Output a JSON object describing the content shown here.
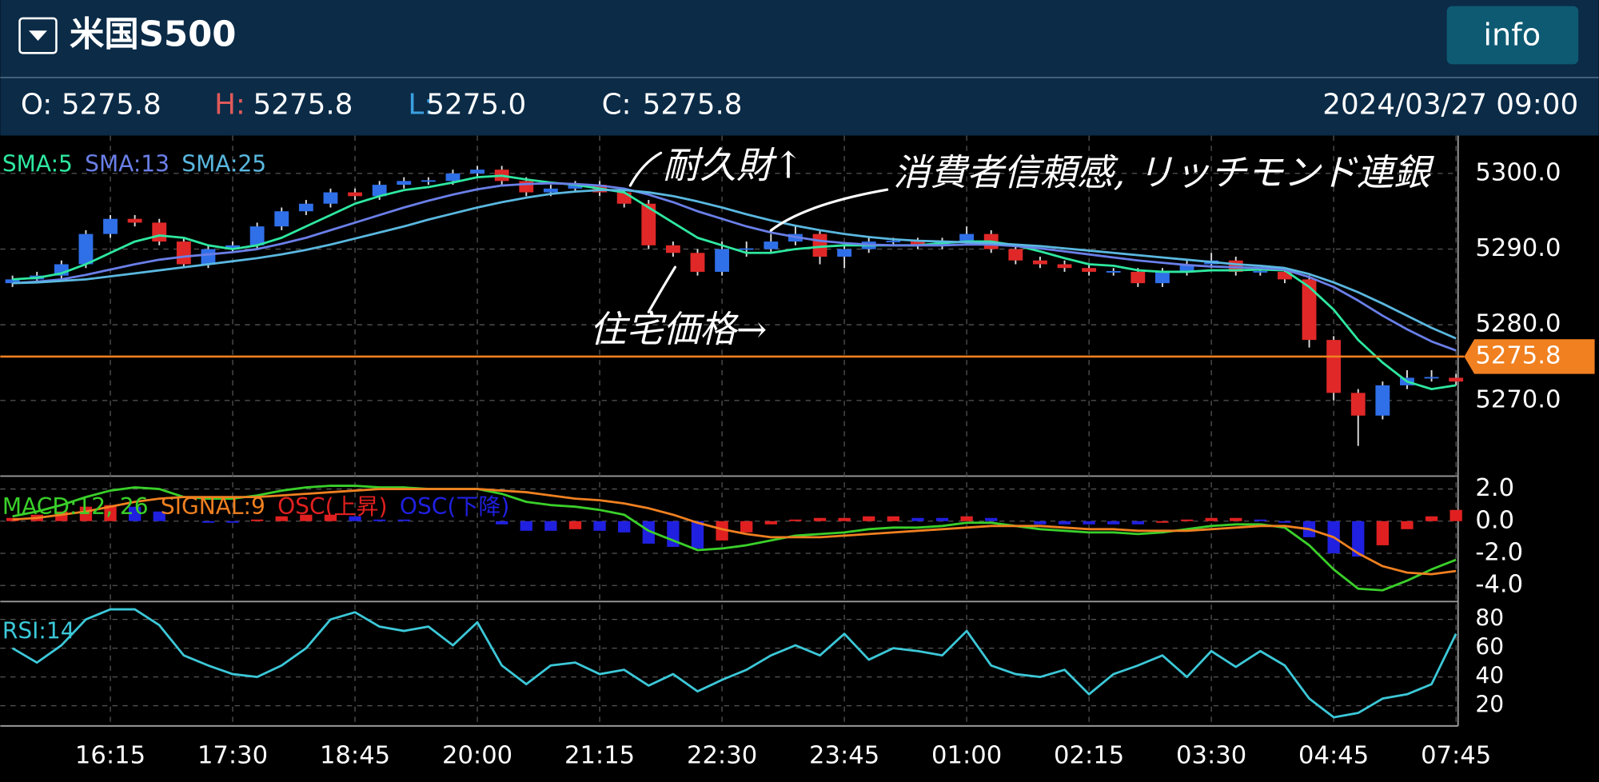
{
  "header": {
    "title": "米国S500",
    "button": "info",
    "ohlc": [
      {
        "label": "O:",
        "value": "5275.8"
      },
      {
        "label": "H:",
        "value": "5275.8"
      },
      {
        "label": "L:",
        "value": "5275.0"
      },
      {
        "label": "C:",
        "value": "5275.8"
      }
    ],
    "datetime": "2024/03/27 09:00"
  },
  "chart_data": [
    {
      "type": "candlestick",
      "ylim": [
        5260,
        5305
      ],
      "yticks": [
        {
          "value": 5270,
          "label": "5270.0"
        },
        {
          "value": 5280,
          "label": "5280.0"
        },
        {
          "value": 5290,
          "label": "5290.0"
        },
        {
          "value": 5300,
          "label": "5300.0"
        }
      ],
      "grid": true,
      "up_color": "#2f6fe8",
      "down_color": "#e02828",
      "last_price": 5275.8,
      "last_price_color": "#f08020",
      "open": [
        5285.5,
        5286,
        5286.5,
        5288,
        5292,
        5294,
        5293.5,
        5291,
        5288,
        5290,
        5290.5,
        5293,
        5295,
        5296,
        5297.5,
        5297,
        5298.5,
        5299,
        5299,
        5300,
        5300.5,
        5299,
        5297.5,
        5298,
        5298.5,
        5297.5,
        5296,
        5290.5,
        5289.5,
        5287,
        5290,
        5290,
        5291,
        5292,
        5289,
        5290,
        5291,
        5291,
        5290.5,
        5291,
        5292,
        5290,
        5288.5,
        5288,
        5287.5,
        5287,
        5287,
        5285.5,
        5287,
        5288,
        5288.5,
        5287,
        5287,
        5286,
        5278,
        5271,
        5268,
        5272,
        5273,
        5273
      ],
      "high": [
        5286.5,
        5287,
        5288.5,
        5292.5,
        5294.5,
        5294.5,
        5294,
        5291.5,
        5290.5,
        5291,
        5293.5,
        5295.5,
        5296.5,
        5298,
        5298,
        5299,
        5299.5,
        5299.5,
        5300.5,
        5301,
        5301,
        5299.5,
        5298.5,
        5299,
        5299,
        5298,
        5296.5,
        5291,
        5290,
        5291,
        5291,
        5292,
        5293,
        5292.5,
        5290.5,
        5291.5,
        5291.5,
        5291.5,
        5291.5,
        5293,
        5292.5,
        5290.5,
        5289,
        5288.5,
        5288,
        5287.5,
        5287.5,
        5287.5,
        5288.5,
        5289.5,
        5289,
        5287.5,
        5287.5,
        5286.5,
        5278.5,
        5271.5,
        5272.5,
        5274,
        5274,
        5273.5
      ],
      "low": [
        5285,
        5285.5,
        5286,
        5287.5,
        5291.5,
        5293,
        5290.5,
        5287.5,
        5287.5,
        5289.5,
        5290,
        5292.5,
        5294.5,
        5295.5,
        5296.5,
        5296.5,
        5298,
        5298.5,
        5298.5,
        5299.5,
        5298.5,
        5297,
        5297,
        5297.5,
        5297,
        5295.5,
        5290,
        5289,
        5286.5,
        5286.5,
        5289,
        5289.5,
        5290.5,
        5288,
        5287.5,
        5289.5,
        5290.5,
        5290,
        5290,
        5290.5,
        5289.5,
        5288,
        5287.5,
        5287,
        5286.5,
        5286.5,
        5285,
        5285,
        5286.5,
        5287.5,
        5286.5,
        5286.5,
        5285.5,
        5277,
        5270,
        5264,
        5267.5,
        5271.5,
        5272.5,
        5272
      ],
      "close": [
        5286,
        5286.5,
        5288,
        5292,
        5294,
        5293.5,
        5291,
        5288,
        5290,
        5290.5,
        5293,
        5295,
        5296,
        5297.5,
        5297,
        5298.5,
        5299,
        5299,
        5300,
        5300.5,
        5299,
        5297.5,
        5298,
        5298.5,
        5297.5,
        5296,
        5290.5,
        5289.5,
        5287,
        5290,
        5290,
        5291,
        5292,
        5289,
        5290,
        5291,
        5291,
        5290.5,
        5291,
        5292,
        5290,
        5288.5,
        5288,
        5287.5,
        5287,
        5287,
        5285.5,
        5287,
        5288,
        5288.5,
        5287,
        5287,
        5286,
        5278,
        5271,
        5268,
        5272,
        5273,
        5273,
        5272.5
      ],
      "series": [
        {
          "name": "SMA:5",
          "color": "#2ee8a0",
          "type": "line",
          "values": [
            5286,
            5286.2,
            5286.8,
            5288,
            5289.5,
            5291,
            5291.8,
            5291.5,
            5290.5,
            5290,
            5290.5,
            5291.5,
            5293,
            5294.5,
            5296,
            5297,
            5297.8,
            5298.2,
            5298.8,
            5299.5,
            5299.7,
            5299.2,
            5298.8,
            5298.5,
            5298,
            5297.5,
            5295.5,
            5293.5,
            5291.5,
            5290.5,
            5289.5,
            5289.5,
            5290,
            5290.3,
            5290.5,
            5290.5,
            5290.5,
            5290.5,
            5290.8,
            5291,
            5291,
            5290.5,
            5289.7,
            5288.8,
            5288,
            5287.8,
            5287.2,
            5287,
            5287,
            5287.2,
            5287.2,
            5287.3,
            5287.2,
            5285,
            5282,
            5278,
            5275,
            5272.5,
            5271.5,
            5272
          ]
        },
        {
          "name": "SMA:13",
          "color": "#6a7fe8",
          "type": "line",
          "values": [
            5285.5,
            5285.7,
            5286,
            5286.6,
            5287.3,
            5288,
            5288.6,
            5289,
            5289.3,
            5289.6,
            5290,
            5290.7,
            5291.5,
            5292.5,
            5293.5,
            5294.5,
            5295.5,
            5296.4,
            5297.2,
            5297.9,
            5298.4,
            5298.6,
            5298.7,
            5298.6,
            5298.4,
            5298,
            5297.2,
            5296.2,
            5295,
            5294,
            5293,
            5292.2,
            5291.6,
            5291.1,
            5290.8,
            5290.6,
            5290.5,
            5290.5,
            5290.5,
            5290.6,
            5290.6,
            5290.4,
            5290.1,
            5289.7,
            5289.3,
            5288.9,
            5288.5,
            5288.2,
            5287.9,
            5287.7,
            5287.6,
            5287.5,
            5287.3,
            5286.3,
            5285,
            5283.2,
            5281.2,
            5279.4,
            5277.8,
            5276.6
          ]
        },
        {
          "name": "SMA:25",
          "color": "#5ab8e0",
          "type": "line",
          "values": [
            5285.5,
            5285.6,
            5285.8,
            5286,
            5286.4,
            5286.8,
            5287.2,
            5287.6,
            5288,
            5288.4,
            5288.8,
            5289.3,
            5289.9,
            5290.6,
            5291.4,
            5292.2,
            5293,
            5293.9,
            5294.7,
            5295.5,
            5296.2,
            5296.8,
            5297.3,
            5297.6,
            5297.8,
            5297.8,
            5297.5,
            5297,
            5296.3,
            5295.5,
            5294.6,
            5293.8,
            5293.1,
            5292.5,
            5292,
            5291.6,
            5291.3,
            5291.1,
            5291,
            5290.9,
            5290.8,
            5290.6,
            5290.4,
            5290.1,
            5289.8,
            5289.5,
            5289.2,
            5288.9,
            5288.6,
            5288.3,
            5288,
            5287.8,
            5287.5,
            5286.7,
            5285.6,
            5284.3,
            5282.8,
            5281.2,
            5279.6,
            5278.2
          ]
        }
      ],
      "annotations": [
        "耐久財↑",
        "消費者信頼感, リッチモンド連銀",
        "住宅価格→"
      ]
    },
    {
      "type": "combo",
      "ylim": [
        -5,
        2.8
      ],
      "yticks": [
        {
          "value": -4,
          "label": "-4.0"
        },
        {
          "value": -2,
          "label": "-2.0"
        },
        {
          "value": 0,
          "label": "0.0"
        },
        {
          "value": 2,
          "label": "2.0"
        }
      ],
      "grid": true,
      "series": [
        {
          "name": "MACD:12, 26",
          "color": "#3ad02a",
          "type": "line",
          "values": [
            0.3,
            0.6,
            1.0,
            1.5,
            1.9,
            2.1,
            2.0,
            1.5,
            1.4,
            1.4,
            1.6,
            1.9,
            2.1,
            2.2,
            2.2,
            2.1,
            2.1,
            2.0,
            2.0,
            2.0,
            1.7,
            1.2,
            1.0,
            0.9,
            0.7,
            0.4,
            -0.6,
            -1.2,
            -1.8,
            -1.7,
            -1.5,
            -1.2,
            -0.9,
            -0.8,
            -0.7,
            -0.5,
            -0.4,
            -0.4,
            -0.3,
            -0.1,
            -0.1,
            -0.3,
            -0.5,
            -0.6,
            -0.7,
            -0.7,
            -0.8,
            -0.7,
            -0.5,
            -0.3,
            -0.2,
            -0.2,
            -0.4,
            -1.5,
            -3.0,
            -4.2,
            -4.3,
            -3.7,
            -3.0,
            -2.4
          ]
        },
        {
          "name": "SIGNAL:9",
          "color": "#f08020",
          "type": "line",
          "values": [
            0.1,
            0.2,
            0.4,
            0.6,
            0.9,
            1.2,
            1.4,
            1.5,
            1.5,
            1.5,
            1.5,
            1.6,
            1.7,
            1.8,
            1.9,
            2.0,
            2.0,
            2.0,
            2.0,
            2.0,
            1.9,
            1.8,
            1.6,
            1.4,
            1.3,
            1.1,
            0.8,
            0.4,
            -0.1,
            -0.5,
            -0.8,
            -1.0,
            -1.0,
            -1.0,
            -0.9,
            -0.8,
            -0.7,
            -0.6,
            -0.5,
            -0.4,
            -0.3,
            -0.3,
            -0.3,
            -0.4,
            -0.5,
            -0.5,
            -0.6,
            -0.6,
            -0.6,
            -0.5,
            -0.4,
            -0.3,
            -0.3,
            -0.5,
            -1.0,
            -2.0,
            -2.8,
            -3.2,
            -3.3,
            -3.1
          ]
        },
        {
          "name": "OSC(上昇)",
          "color": "#e02020",
          "type": "bar",
          "values": [
            0.2,
            0.4,
            0.6,
            0.9,
            1.0,
            null,
            null,
            null,
            null,
            null,
            0.1,
            0.3,
            0.4,
            0.4,
            null,
            null,
            null,
            null,
            null,
            null,
            null,
            null,
            null,
            -0.5,
            null,
            null,
            null,
            null,
            null,
            -1.2,
            -0.7,
            -0.2,
            0.1,
            0.2,
            0.2,
            0.3,
            0.3,
            null,
            null,
            0.3,
            null,
            null,
            null,
            null,
            null,
            null,
            null,
            -0.1,
            0.1,
            0.2,
            0.2,
            null,
            null,
            null,
            null,
            null,
            -1.5,
            -0.5,
            0.3,
            0.7
          ]
        },
        {
          "name": "OSC(下降)",
          "color": "#2020e0",
          "type": "bar",
          "values": [
            null,
            null,
            null,
            null,
            null,
            0.9,
            0.6,
            0,
            -0.1,
            -0.1,
            null,
            null,
            null,
            null,
            0.3,
            0.1,
            0.1,
            0,
            0,
            0,
            -0.2,
            -0.6,
            -0.6,
            null,
            -0.6,
            -0.7,
            -1.4,
            -1.6,
            -1.7,
            null,
            null,
            null,
            null,
            null,
            null,
            null,
            null,
            0.2,
            0.2,
            null,
            0.2,
            0,
            -0.2,
            -0.2,
            -0.2,
            -0.2,
            -0.2,
            null,
            null,
            null,
            null,
            0.1,
            -0.1,
            -1.0,
            -2.0,
            -2.2,
            null,
            null,
            null,
            null
          ]
        }
      ]
    },
    {
      "type": "line",
      "ylim": [
        6,
        91
      ],
      "yticks": [
        20,
        40,
        60,
        80
      ],
      "grid": true,
      "categories": [
        null,
        null,
        null,
        null,
        "16:15",
        null,
        null,
        null,
        null,
        "17:30",
        null,
        null,
        null,
        null,
        "18:45",
        null,
        null,
        null,
        null,
        "20:00",
        null,
        null,
        null,
        null,
        "21:15",
        null,
        null,
        null,
        null,
        "22:30",
        null,
        null,
        null,
        null,
        "23:45",
        null,
        null,
        null,
        null,
        "01:00",
        null,
        null,
        null,
        null,
        "02:15",
        null,
        null,
        null,
        null,
        "03:30",
        null,
        null,
        null,
        null,
        "04:45",
        null,
        null,
        null,
        null,
        "07:45"
      ],
      "series": [
        {
          "name": "RSI:14",
          "color": "#3cc8d8",
          "type": "line",
          "values": [
            60,
            50,
            62,
            80,
            87,
            87,
            76,
            55,
            48,
            42,
            40,
            48,
            60,
            80,
            85,
            75,
            72,
            75,
            62,
            78,
            48,
            35,
            48,
            50,
            42,
            45,
            34,
            42,
            30,
            38,
            45,
            55,
            62,
            55,
            70,
            52,
            60,
            58,
            55,
            72,
            48,
            42,
            40,
            45,
            28,
            42,
            48,
            55,
            40,
            58,
            47,
            58,
            48,
            25,
            12,
            15,
            25,
            28,
            35,
            70
          ]
        }
      ]
    }
  ]
}
